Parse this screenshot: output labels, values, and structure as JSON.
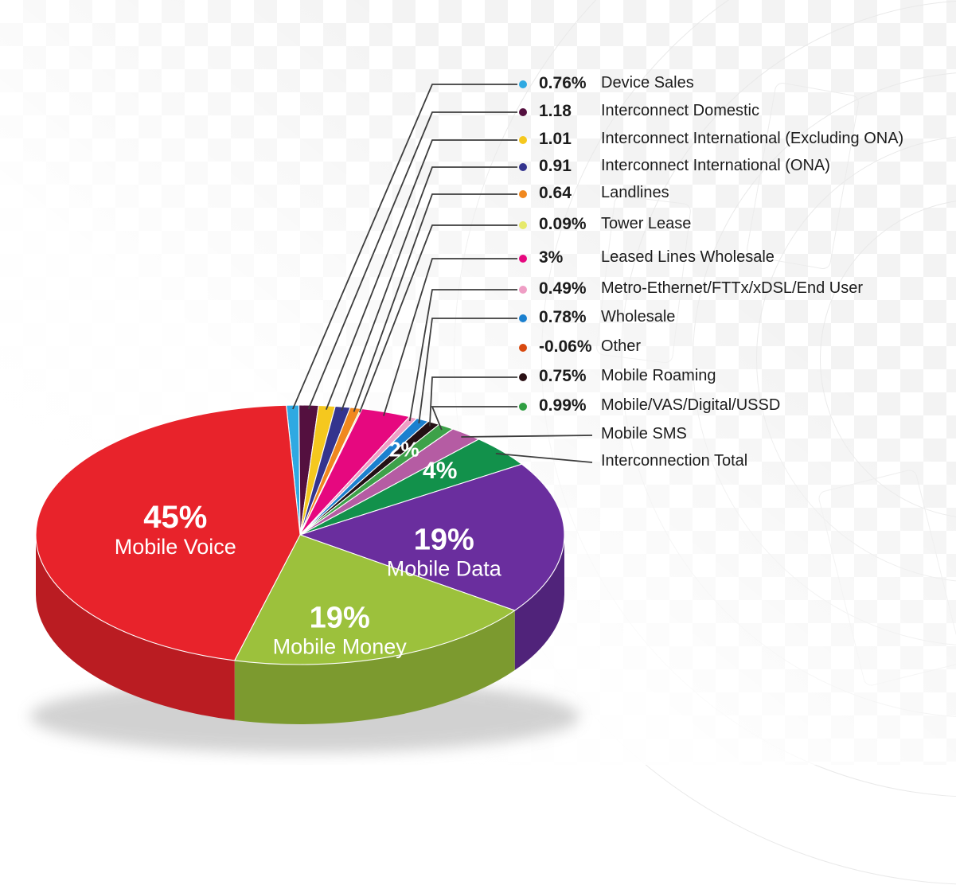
{
  "chart_data": {
    "type": "pie",
    "title": "",
    "unit": "%",
    "style": {
      "leader_line_color": "#3d3d3d",
      "legend_text_color": "#1c1c1c",
      "pie_label_color": "#ffffff",
      "background": "#ffffff",
      "watermark_color": "#f3f3f3"
    },
    "slices": [
      {
        "name": "Device Sales",
        "value": 0.76,
        "display": "0.76%",
        "color": "#2fa9e2",
        "side": "#2587b5"
      },
      {
        "name": "Interconnect Domestic",
        "value": 1.18,
        "display": "1.18",
        "color": "#54103f",
        "side": "#400c30"
      },
      {
        "name": "Interconnect International (Excluding ONA)",
        "value": 1.01,
        "display": "1.01",
        "color": "#f5c81e",
        "side": "#c4a018"
      },
      {
        "name": "Interconnect International (ONA)",
        "value": 0.91,
        "display": "0.91",
        "color": "#34348e",
        "side": "#282871"
      },
      {
        "name": "Landlines",
        "value": 0.64,
        "display": "0.64",
        "color": "#f0881f",
        "side": "#c06d19"
      },
      {
        "name": "Tower Lease",
        "value": 0.09,
        "display": "0.09%",
        "color": "#e6e96a",
        "side": "#b8ba55"
      },
      {
        "name": "Leased Lines Wholesale",
        "value": 3,
        "display": "3%",
        "color": "#e6087f",
        "side": "#b80666"
      },
      {
        "name": "Metro-Ethernet/FTTx/xDSL/End User",
        "value": 0.49,
        "display": "0.49%",
        "color": "#ef9ec5",
        "side": "#bf7e9e"
      },
      {
        "name": "Wholesale",
        "value": 0.78,
        "display": "0.78%",
        "color": "#1b80cf",
        "side": "#1566a6"
      },
      {
        "name": "Mobile Roaming",
        "value": 0.75,
        "display": "0.75%",
        "color": "#231014",
        "side": "#1a0c0f"
      },
      {
        "name": "Mobile/VAS/Digital/USSD",
        "value": 0.99,
        "display": "0.99%",
        "color": "#3da149",
        "side": "#31813a"
      },
      {
        "name": "Mobile SMS",
        "value": 2,
        "display": "2%",
        "color": "#b55ca3",
        "side": "#914a82"
      },
      {
        "name": "Interconnection Total",
        "value": 4,
        "display": "4%",
        "color": "#12914b",
        "side": "#0e743c"
      },
      {
        "name": "Mobile Data",
        "value": 19,
        "display": "19%",
        "color": "#6a2e9e",
        "side": "#50237a"
      },
      {
        "name": "Mobile Money",
        "value": 19,
        "display": "19%",
        "color": "#9cc13c",
        "side": "#7c9a2f"
      },
      {
        "name": "Mobile Voice",
        "value": 45,
        "display": "45%",
        "color": "#e8232b",
        "side": "#ba1c22"
      }
    ],
    "legend": [
      {
        "value": "0.76%",
        "label": "Device Sales",
        "dot": "#2fa9e2"
      },
      {
        "value": "1.18",
        "label": "Interconnect Domestic",
        "dot": "#54103f"
      },
      {
        "value": "1.01",
        "label": "Interconnect International (Excluding ONA)",
        "dot": "#f5c81e"
      },
      {
        "value": "0.91",
        "label": "Interconnect International (ONA)",
        "dot": "#34348e"
      },
      {
        "value": "0.64",
        "label": "Landlines",
        "dot": "#f0881f"
      },
      {
        "value": "0.09%",
        "label": "Tower Lease",
        "dot": "#e6e96a"
      },
      {
        "value": "3%",
        "label": "Leased Lines Wholesale",
        "dot": "#e6087f"
      },
      {
        "value": "0.49%",
        "label": "Metro-Ethernet/FTTx/xDSL/End User",
        "dot": "#ef9ec5"
      },
      {
        "value": "0.78%",
        "label": "Wholesale",
        "dot": "#1b80cf"
      },
      {
        "value": "-0.06%",
        "label": "Other",
        "dot": "#d8490f"
      },
      {
        "value": "0.75%",
        "label": "Mobile Roaming",
        "dot": "#2b1115"
      },
      {
        "value": "0.99%",
        "label": "Mobile/VAS/Digital/USSD",
        "dot": "#2f9e41"
      },
      {
        "value": "",
        "label": "Mobile SMS",
        "dot": null
      },
      {
        "value": "",
        "label": "Interconnection Total",
        "dot": null
      }
    ],
    "inner_labels": [
      {
        "text": "45%",
        "sub": "Mobile Voice",
        "slice": "Mobile Voice"
      },
      {
        "text": "19%",
        "sub": "Mobile Money",
        "slice": "Mobile Money"
      },
      {
        "text": "19%",
        "sub": "Mobile Data",
        "slice": "Mobile Data"
      },
      {
        "text": "4%",
        "sub": "",
        "slice": "Interconnection Total"
      },
      {
        "text": "2%",
        "sub": "",
        "slice": "Mobile SMS"
      }
    ]
  }
}
